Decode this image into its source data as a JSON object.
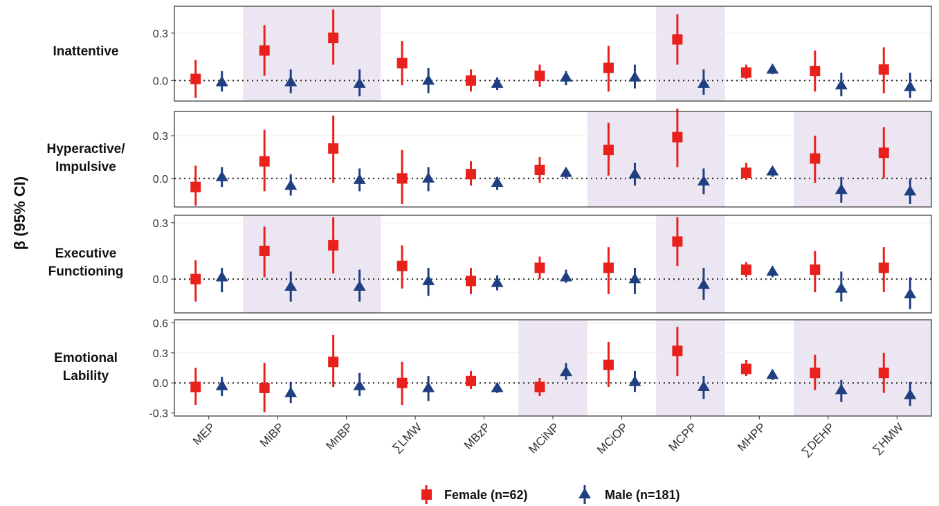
{
  "chart_data": {
    "type": "scatter",
    "ylabel": "β (95% CI)",
    "categories": [
      "MEP",
      "MiBP",
      "MnBP",
      "∑LMW",
      "MBzP",
      "MCiNP",
      "MCiOP",
      "MCPP",
      "MHPP",
      "∑DEHP",
      "∑HMW"
    ],
    "legend": {
      "position": "bottom"
    },
    "colors": {
      "Female (n=62)": "#e8211c",
      "Male (n=181)": "#1f3f80",
      "highlight": "#ece6f2"
    },
    "series": [
      {
        "name": "Female (n=62)",
        "marker": "square"
      },
      {
        "name": "Male (n=181)",
        "marker": "triangle"
      }
    ],
    "panels": [
      {
        "label_lines": [
          "Inattentive"
        ],
        "ylim": [
          -0.13,
          0.47
        ],
        "yticks": [
          "0.0",
          "0.3"
        ],
        "highlighted": [
          "MiBP",
          "MnBP",
          "MCPP"
        ],
        "female": [
          [
            0.01,
            -0.11,
            0.13
          ],
          [
            0.19,
            0.03,
            0.35
          ],
          [
            0.27,
            0.1,
            0.45
          ],
          [
            0.11,
            -0.03,
            0.25
          ],
          [
            0.0,
            -0.07,
            0.07
          ],
          [
            0.03,
            -0.04,
            0.1
          ],
          [
            0.08,
            -0.07,
            0.22
          ],
          [
            0.26,
            0.1,
            0.42
          ],
          [
            0.05,
            0.01,
            0.1
          ],
          [
            0.06,
            -0.07,
            0.19
          ],
          [
            0.07,
            -0.08,
            0.21
          ]
        ],
        "male": [
          [
            -0.01,
            -0.07,
            0.06
          ],
          [
            -0.01,
            -0.08,
            0.07
          ],
          [
            -0.02,
            -0.1,
            0.07
          ],
          [
            0.0,
            -0.08,
            0.08
          ],
          [
            -0.02,
            -0.06,
            0.02
          ],
          [
            0.02,
            -0.03,
            0.06
          ],
          [
            0.02,
            -0.05,
            0.1
          ],
          [
            -0.02,
            -0.09,
            0.07
          ],
          [
            0.07,
            0.04,
            0.09
          ],
          [
            -0.03,
            -0.1,
            0.05
          ],
          [
            -0.04,
            -0.11,
            0.05
          ]
        ]
      },
      {
        "label_lines": [
          "Hyperactive/",
          "Impulsive"
        ],
        "ylim": [
          -0.2,
          0.47
        ],
        "yticks": [
          "0.0",
          "0.3"
        ],
        "highlighted": [
          "MCiOP",
          "MCPP",
          "∑DEHP",
          "∑HMW"
        ],
        "female": [
          [
            -0.06,
            -0.19,
            0.09
          ],
          [
            0.12,
            -0.09,
            0.34
          ],
          [
            0.21,
            -0.03,
            0.44
          ],
          [
            0.0,
            -0.18,
            0.2
          ],
          [
            0.03,
            -0.05,
            0.12
          ],
          [
            0.06,
            -0.03,
            0.15
          ],
          [
            0.2,
            0.02,
            0.39
          ],
          [
            0.29,
            0.08,
            0.49
          ],
          [
            0.04,
            -0.01,
            0.11
          ],
          [
            0.14,
            -0.03,
            0.3
          ],
          [
            0.18,
            0.0,
            0.36
          ]
        ],
        "male": [
          [
            0.01,
            -0.06,
            0.08
          ],
          [
            -0.05,
            -0.12,
            0.03
          ],
          [
            -0.01,
            -0.09,
            0.07
          ],
          [
            0.0,
            -0.09,
            0.08
          ],
          [
            -0.03,
            -0.08,
            0.01
          ],
          [
            0.04,
            0.0,
            0.07
          ],
          [
            0.03,
            -0.05,
            0.11
          ],
          [
            -0.02,
            -0.11,
            0.07
          ],
          [
            0.05,
            0.01,
            0.08
          ],
          [
            -0.08,
            -0.17,
            0.01
          ],
          [
            -0.09,
            -0.18,
            0.0
          ]
        ]
      },
      {
        "label_lines": [
          "Executive",
          "Functioning"
        ],
        "ylim": [
          -0.18,
          0.34
        ],
        "yticks": [
          "0.0",
          "0.3"
        ],
        "highlighted": [
          "MiBP",
          "MnBP",
          "MCPP"
        ],
        "female": [
          [
            0.0,
            -0.12,
            0.1
          ],
          [
            0.15,
            0.01,
            0.28
          ],
          [
            0.18,
            0.03,
            0.33
          ],
          [
            0.07,
            -0.05,
            0.18
          ],
          [
            -0.01,
            -0.08,
            0.06
          ],
          [
            0.06,
            0.0,
            0.12
          ],
          [
            0.06,
            -0.08,
            0.17
          ],
          [
            0.2,
            0.07,
            0.33
          ],
          [
            0.05,
            0.01,
            0.09
          ],
          [
            0.05,
            -0.07,
            0.15
          ],
          [
            0.06,
            -0.07,
            0.17
          ]
        ],
        "male": [
          [
            0.01,
            -0.07,
            0.06
          ],
          [
            -0.04,
            -0.12,
            0.04
          ],
          [
            -0.04,
            -0.12,
            0.05
          ],
          [
            -0.01,
            -0.09,
            0.06
          ],
          [
            -0.02,
            -0.06,
            0.02
          ],
          [
            0.01,
            -0.02,
            0.05
          ],
          [
            0.0,
            -0.08,
            0.06
          ],
          [
            -0.03,
            -0.11,
            0.06
          ],
          [
            0.04,
            0.01,
            0.07
          ],
          [
            -0.05,
            -0.12,
            0.04
          ],
          [
            -0.08,
            -0.16,
            0.01
          ]
        ]
      },
      {
        "label_lines": [
          "Emotional",
          "Lability"
        ],
        "ylim": [
          -0.33,
          0.63
        ],
        "yticks": [
          "-0.3",
          "0.0",
          "0.3",
          "0.6"
        ],
        "highlighted": [
          "MCiNP",
          "MCPP",
          "∑DEHP",
          "∑HMW"
        ],
        "female": [
          [
            -0.04,
            -0.22,
            0.15
          ],
          [
            -0.05,
            -0.29,
            0.2
          ],
          [
            0.21,
            -0.04,
            0.48
          ],
          [
            0.0,
            -0.22,
            0.21
          ],
          [
            0.02,
            -0.06,
            0.12
          ],
          [
            -0.04,
            -0.13,
            0.05
          ],
          [
            0.18,
            -0.04,
            0.41
          ],
          [
            0.32,
            0.07,
            0.56
          ],
          [
            0.14,
            0.07,
            0.23
          ],
          [
            0.1,
            -0.07,
            0.28
          ],
          [
            0.1,
            -0.1,
            0.3
          ]
        ],
        "male": [
          [
            -0.03,
            -0.13,
            0.06
          ],
          [
            -0.1,
            -0.2,
            0.01
          ],
          [
            -0.03,
            -0.13,
            0.1
          ],
          [
            -0.05,
            -0.18,
            0.07
          ],
          [
            -0.05,
            -0.1,
            0.0
          ],
          [
            0.11,
            0.03,
            0.2
          ],
          [
            0.01,
            -0.09,
            0.12
          ],
          [
            -0.04,
            -0.16,
            0.07
          ],
          [
            0.08,
            0.03,
            0.13
          ],
          [
            -0.07,
            -0.19,
            0.03
          ],
          [
            -0.12,
            -0.23,
            0.01
          ]
        ]
      }
    ]
  }
}
